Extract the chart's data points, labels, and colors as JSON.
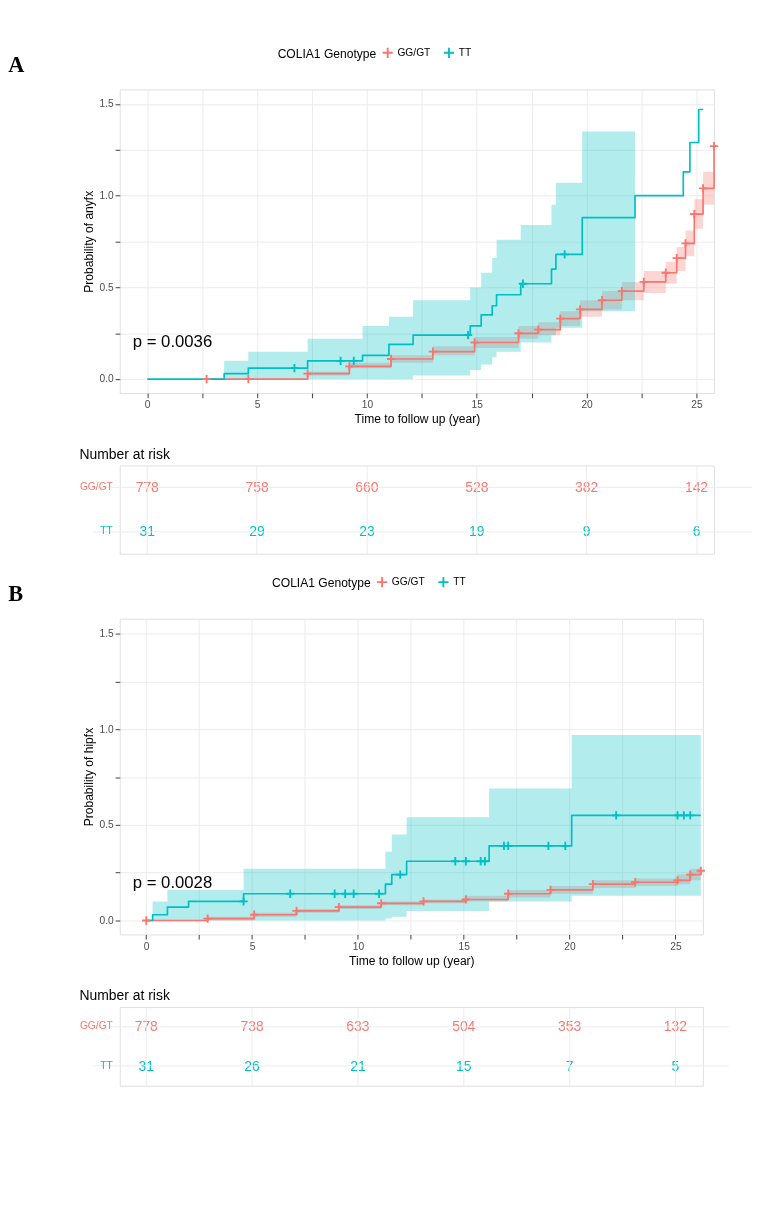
{
  "chart_data": [
    {
      "type": "step",
      "title": null,
      "xlabel": "Time to follow up (year)",
      "ylabel": "Probability of anyfx",
      "legend_title": "COLIA1 Genotype",
      "legend": "top",
      "annotations": [
        "A",
        "p = 0.0036"
      ],
      "xlim": [
        -1.25,
        25.8
      ],
      "ylim": [
        -0.076,
        1.579
      ],
      "xticks": [
        0,
        {
          "value": 2.5,
          "label": null
        },
        5,
        {
          "value": 7.5,
          "label": null
        },
        10,
        {
          "value": 12.5,
          "label": null
        },
        15,
        {
          "value": 17.5,
          "label": null
        },
        20,
        {
          "value": 22.5,
          "label": null
        },
        25
      ],
      "yticks": [
        {
          "value": 0,
          "label": "0.0"
        },
        {
          "value": 0.25,
          "label": null
        },
        {
          "value": 0.5,
          "label": "0.5"
        },
        {
          "value": 0.75,
          "label": null
        },
        {
          "value": 1,
          "label": "1.0"
        },
        {
          "value": 1.25,
          "label": null
        },
        {
          "value": 1.5,
          "label": "1.5"
        }
      ],
      "grid": true,
      "series": [
        {
          "name": "GG/GT",
          "color": "#f8766d",
          "marker": "cross",
          "x": [
            2.7,
            4.6,
            7.3,
            9.2,
            11.1,
            13,
            14.9,
            16.9,
            17.8,
            18.8,
            19.7,
            20.7,
            21.6,
            22.6,
            23.6,
            24.1,
            24.5,
            24.9,
            25.3,
            25.8
          ],
          "values": [
            0,
            0,
            0.03,
            0.07,
            0.11,
            0.15,
            0.2,
            0.25,
            0.27,
            0.33,
            0.38,
            0.43,
            0.48,
            0.53,
            0.58,
            0.66,
            0.74,
            0.9,
            1.04,
            1.27
          ],
          "lower": [
            0,
            0,
            0.02,
            0.06,
            0.09,
            0.13,
            0.17,
            0.22,
            0.24,
            0.29,
            0.34,
            0.38,
            0.43,
            0.47,
            0.52,
            0.59,
            0.67,
            0.82,
            0.95,
            1.17
          ],
          "upper": [
            0,
            0,
            0.04,
            0.09,
            0.13,
            0.18,
            0.23,
            0.29,
            0.31,
            0.37,
            0.43,
            0.48,
            0.53,
            0.59,
            0.64,
            0.72,
            0.81,
            0.98,
            1.13,
            1.37
          ]
        },
        {
          "name": "TT",
          "color": "#00bfc4",
          "marker": "none",
          "x": [
            0,
            3.5,
            4.6,
            7.3,
            9.8,
            11,
            12.1,
            14.7,
            15.2,
            15.7,
            15.9,
            17,
            18.4,
            18.6,
            19.8,
            22.2,
            24.4,
            24.7,
            25.1,
            25.3
          ],
          "values": [
            0,
            0.03,
            0.06,
            0.1,
            0.13,
            0.19,
            0.24,
            0.29,
            0.35,
            0.4,
            0.46,
            0.52,
            0.6,
            0.68,
            0.88,
            1.0,
            1.13,
            1.29,
            1.47,
            1.47
          ],
          "lower": [
            null,
            0,
            0,
            0,
            0,
            0,
            0.02,
            0.05,
            0.08,
            0.12,
            0.15,
            0.2,
            0.24,
            0.28,
            0.37,
            0.41,
            null,
            null,
            null,
            null
          ],
          "upper": [
            null,
            0.1,
            0.15,
            0.22,
            0.29,
            0.34,
            0.43,
            0.5,
            0.58,
            0.66,
            0.76,
            0.84,
            0.95,
            1.07,
            1.35,
            1.35,
            null,
            null,
            null,
            null
          ]
        },
        {
          "type": "scatter",
          "color": "#00bfc4",
          "marker": "cross",
          "x": [
            6.7,
            8.8,
            9.4,
            14.6,
            17.1,
            19.0
          ],
          "values": [
            0.06,
            0.1,
            0.1,
            0.24,
            0.52,
            0.68
          ]
        }
      ]
    },
    {
      "type": "heatmap",
      "title": "Number at risk",
      "data_labels": true,
      "grid": true,
      "categories": [
        null,
        null,
        null,
        null,
        null,
        null
      ],
      "y_categories": [
        "GG/GT",
        "TT"
      ],
      "colors": [
        "#f8766d",
        "#00bfc4"
      ],
      "cells": [
        [
          778,
          758,
          660,
          528,
          382,
          142
        ],
        [
          31,
          29,
          23,
          19,
          9,
          6
        ]
      ]
    },
    {
      "type": "step",
      "title": null,
      "xlabel": "Time to follow up (year)",
      "ylabel": "Probability of hipfx",
      "legend_title": "COLIA1 Genotype",
      "legend": "top",
      "annotations": [
        "B",
        "p = 0.0028"
      ],
      "xlim": [
        -1.25,
        26.3
      ],
      "ylim": [
        -0.073,
        1.578
      ],
      "xticks": [
        0,
        {
          "value": 2.5,
          "label": null
        },
        5,
        {
          "value": 7.5,
          "label": null
        },
        10,
        {
          "value": 12.5,
          "label": null
        },
        15,
        {
          "value": 17.5,
          "label": null
        },
        20,
        {
          "value": 22.5,
          "label": null
        },
        25
      ],
      "yticks": [
        {
          "value": 0,
          "label": "0.0"
        },
        {
          "value": 0.25,
          "label": null
        },
        {
          "value": 0.5,
          "label": "0.5"
        },
        {
          "value": 0.75,
          "label": null
        },
        {
          "value": 1,
          "label": "1.0"
        },
        {
          "value": 1.25,
          "label": null
        },
        {
          "value": 1.5,
          "label": "1.5"
        }
      ],
      "grid": true,
      "series": [
        {
          "name": "GG/GT",
          "color": "#f8766d",
          "marker": "cross",
          "x": [
            0,
            2.9,
            5.1,
            7.1,
            9.1,
            11.1,
            13.1,
            15.1,
            17.1,
            19.1,
            21.1,
            23.1,
            25.1,
            25.7,
            26.2
          ],
          "values": [
            0,
            0.01,
            0.03,
            0.05,
            0.07,
            0.09,
            0.1,
            0.11,
            0.14,
            0.16,
            0.19,
            0.2,
            0.21,
            0.24,
            0.26
          ],
          "lower": [
            0,
            0,
            0.02,
            0.04,
            0.06,
            0.08,
            0.09,
            0.1,
            0.12,
            0.14,
            0.17,
            0.18,
            0.19,
            0.21,
            0.23
          ],
          "upper": [
            0,
            0.02,
            0.04,
            0.06,
            0.08,
            0.1,
            0.11,
            0.13,
            0.16,
            0.18,
            0.21,
            0.22,
            0.24,
            0.27,
            0.29
          ]
        },
        {
          "name": "TT",
          "color": "#00bfc4",
          "marker": "none",
          "x": [
            0,
            0.3,
            1,
            2,
            4.6,
            11.3,
            11.6,
            12.3,
            16.2,
            20.1,
            26.2
          ],
          "values": [
            0,
            0.03,
            0.07,
            0.1,
            0.14,
            0.19,
            0.24,
            0.31,
            0.39,
            0.55,
            0.55
          ],
          "lower": [
            null,
            0,
            0,
            0,
            0,
            0.01,
            0.02,
            0.05,
            0.1,
            0.13,
            0.13
          ],
          "upper": [
            null,
            0.1,
            0.16,
            0.16,
            0.27,
            0.36,
            0.45,
            0.54,
            0.69,
            0.97,
            0.97
          ]
        },
        {
          "type": "scatter",
          "color": "#00bfc4",
          "marker": "cross",
          "x": [
            4.6,
            6.8,
            8.9,
            9.4,
            9.8,
            11.0,
            12.0,
            14.6,
            15.1,
            15.8,
            16.0,
            16.9,
            17.1,
            19.0,
            19.8,
            22.2,
            25.1,
            25.4,
            25.7
          ],
          "values": [
            0.1,
            0.14,
            0.14,
            0.14,
            0.14,
            0.14,
            0.24,
            0.31,
            0.31,
            0.31,
            0.31,
            0.39,
            0.39,
            0.39,
            0.39,
            0.55,
            0.55,
            0.55,
            0.55
          ]
        }
      ]
    },
    {
      "type": "heatmap",
      "title": "Number at risk",
      "data_labels": true,
      "grid": true,
      "categories": [
        null,
        null,
        null,
        null,
        null,
        null
      ],
      "y_categories": [
        "GG/GT",
        "TT"
      ],
      "colors": [
        "#f8766d",
        "#00bfc4"
      ],
      "cells": [
        [
          778,
          738,
          633,
          504,
          353,
          132
        ],
        [
          31,
          26,
          21,
          15,
          7,
          5
        ]
      ]
    }
  ]
}
